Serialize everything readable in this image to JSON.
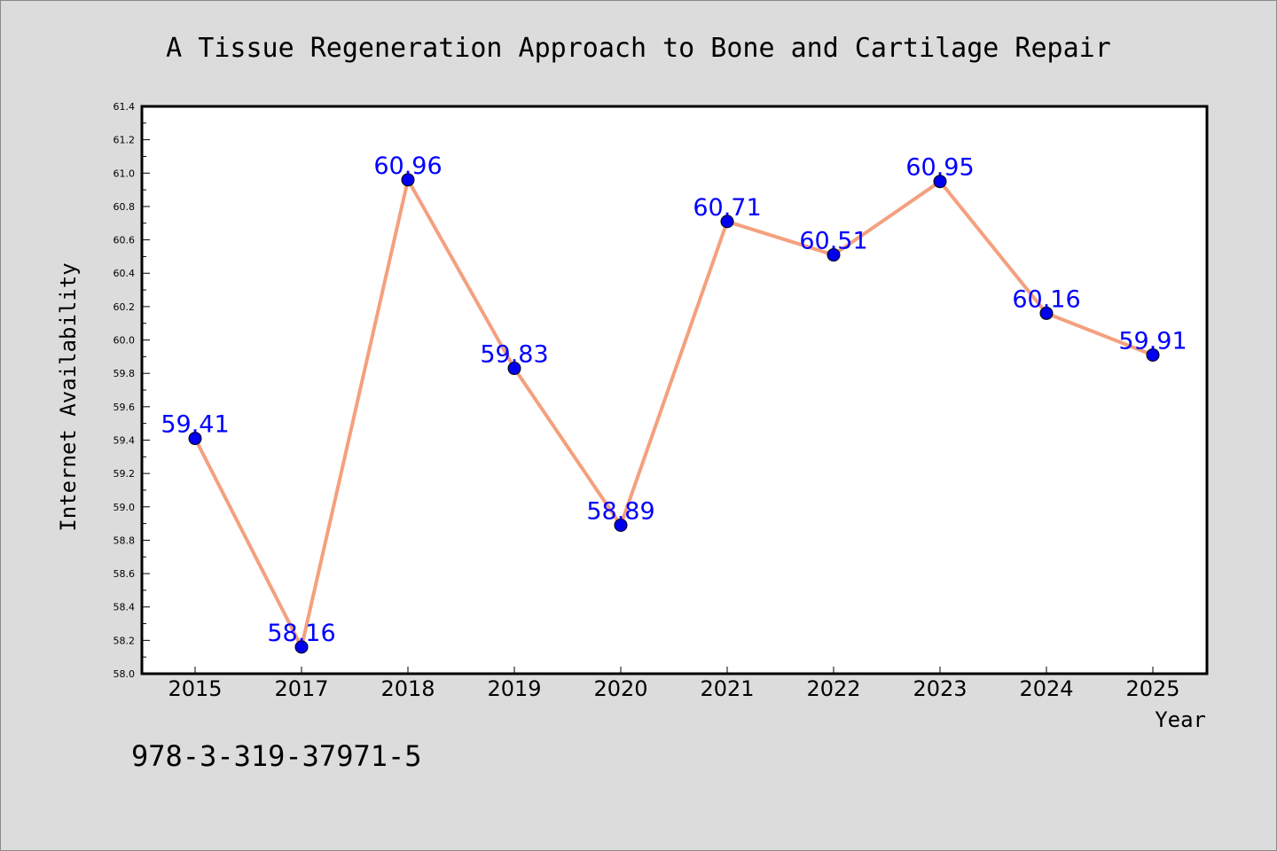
{
  "chart_data": {
    "type": "line",
    "title": "A Tissue Regeneration Approach to Bone and Cartilage Repair",
    "xlabel": "Year",
    "ylabel": "Internet Availability",
    "categories": [
      "2015",
      "2017",
      "2018",
      "2019",
      "2020",
      "2021",
      "2022",
      "2023",
      "2024",
      "2025"
    ],
    "values": [
      59.41,
      58.16,
      60.96,
      59.83,
      58.89,
      60.71,
      60.51,
      60.95,
      60.16,
      59.91
    ],
    "data_labels": [
      "59.41",
      "58.16",
      "60.96",
      "59.83",
      "58.89",
      "60.71",
      "60.51",
      "60.95",
      "60.16",
      "59.91"
    ],
    "ylim": [
      58.0,
      61.4
    ],
    "yticks": [
      "58.0",
      "58.2",
      "58.4",
      "58.6",
      "58.8",
      "59.0",
      "59.2",
      "59.4",
      "59.6",
      "59.8",
      "60.0",
      "60.2",
      "60.4",
      "60.6",
      "60.8",
      "61.0",
      "61.2",
      "61.4"
    ],
    "grid": false,
    "legend": "none",
    "colors": {
      "line": "#f4a07e",
      "marker": "#0000ee",
      "data_label": "#0000ff",
      "figure_background": "#dcdcdc",
      "plot_background": "#ffffff"
    }
  },
  "footer": {
    "isbn": "978-3-319-37971-5"
  }
}
